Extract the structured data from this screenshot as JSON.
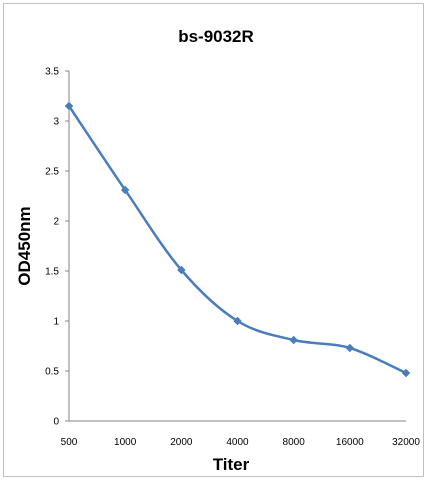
{
  "chart_data": {
    "type": "line",
    "title": "bs-9032R",
    "xlabel": "Titer",
    "ylabel": "OD450nm",
    "categories": [
      "500",
      "1000",
      "2000",
      "4000",
      "8000",
      "16000",
      "32000"
    ],
    "series": [
      {
        "values": [
          3.15,
          2.31,
          1.51,
          1.0,
          0.81,
          0.73,
          0.48
        ],
        "color": "#4a7ebb",
        "marker": "diamond"
      }
    ],
    "ylim": [
      0,
      3.5
    ],
    "yticks": [
      "0",
      "0.5",
      "1",
      "1.5",
      "2",
      "2.5",
      "3",
      "3.5"
    ],
    "grid": false,
    "legend": "none"
  }
}
